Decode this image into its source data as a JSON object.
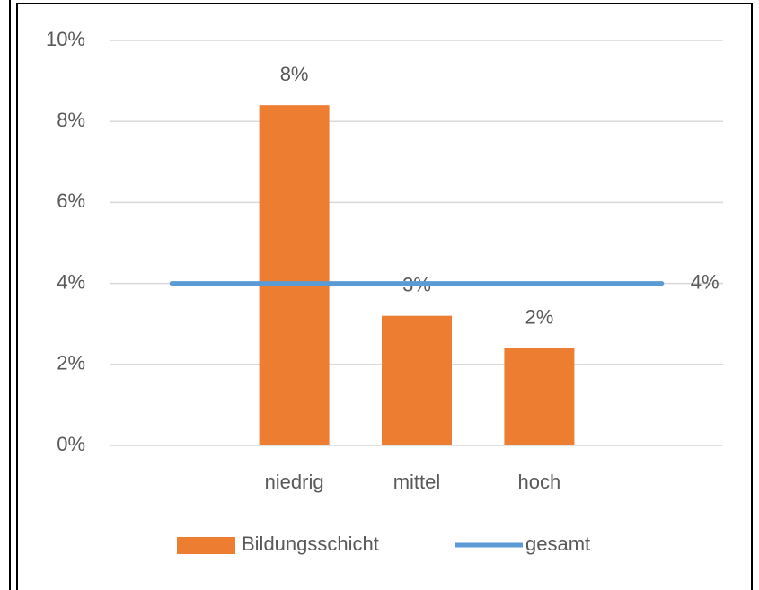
{
  "chart_data": {
    "type": "bar",
    "categories": [
      null,
      "niedrig",
      "mittel",
      "hoch",
      null
    ],
    "series": [
      {
        "name": "Bildungsschicht",
        "type": "bar",
        "color": "#ed7d31",
        "values": [
          null,
          8.4,
          3.2,
          2.4,
          null
        ],
        "value_labels": [
          null,
          "8%",
          "3%",
          "2%",
          null
        ]
      },
      {
        "name": "gesamt",
        "type": "line",
        "color": "#5b9bd5",
        "values": [
          4,
          4,
          4,
          4,
          4
        ],
        "value_labels": [
          null,
          null,
          null,
          null,
          "4%"
        ]
      }
    ],
    "ylim": [
      0,
      10
    ],
    "yticks": [
      {
        "value": 0,
        "label": "0%"
      },
      {
        "value": 2,
        "label": "2%"
      },
      {
        "value": 4,
        "label": "4%"
      },
      {
        "value": 6,
        "label": "6%"
      },
      {
        "value": 8,
        "label": "8%"
      },
      {
        "value": 10,
        "label": "10%"
      }
    ],
    "grid": true,
    "legend": "bottom"
  }
}
